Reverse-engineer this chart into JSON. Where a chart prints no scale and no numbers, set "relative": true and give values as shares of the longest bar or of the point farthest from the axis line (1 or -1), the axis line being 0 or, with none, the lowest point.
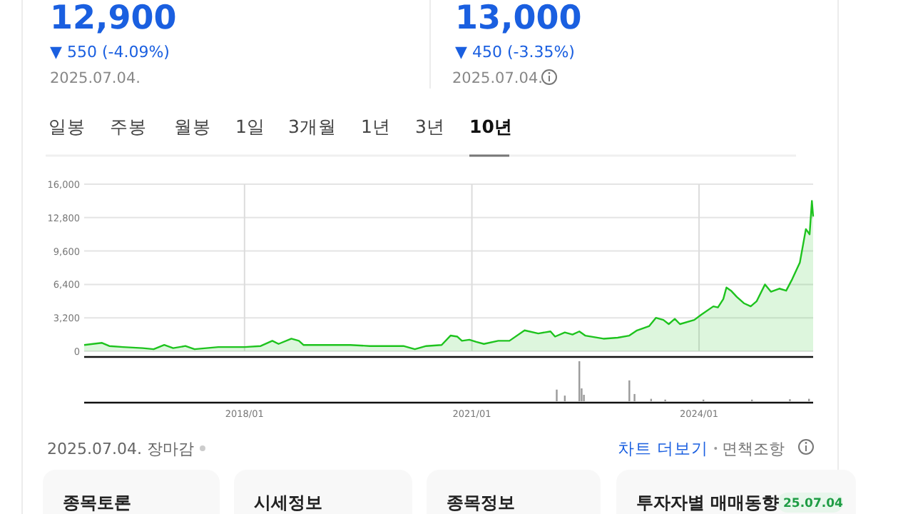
{
  "chart_data": [
    {
      "type": "area",
      "xlim": [
        "2015-11-20",
        "2025-07-04"
      ],
      "ylim": [
        0,
        16000
      ],
      "yticks": [
        {
          "value": 0,
          "label": "0"
        },
        {
          "value": 3200,
          "label": "3,200"
        },
        {
          "value": 6400,
          "label": "6,400"
        },
        {
          "value": 9600,
          "label": "9,600"
        },
        {
          "value": 12800,
          "label": "12,800"
        },
        {
          "value": 16000,
          "label": "16,000"
        }
      ],
      "xticks": [
        {
          "value": "2018-01",
          "label": null
        },
        {
          "value": "2021-01",
          "label": null
        },
        {
          "value": "2024-01",
          "label": null
        }
      ],
      "tick_labels": "y",
      "grid": true,
      "x": [
        "2015-11-20",
        "2016-01-01",
        "2016-02-14",
        "2016-03-20",
        "2016-05-26",
        "2016-08-28",
        "2016-10-20",
        "2016-12-10",
        "2017-01-22",
        "2017-03-22",
        "2017-05-05",
        "2017-08-28",
        "2018-01-01",
        "2018-03-20",
        "2018-05-15",
        "2018-06-14",
        "2018-08-15",
        "2018-09-20",
        "2018-10-12",
        "2019-01-12",
        "2019-05-26",
        "2019-08-28",
        "2020-02-06",
        "2020-04-01",
        "2020-05-26",
        "2020-08-08",
        "2020-09-20",
        "2020-10-23",
        "2020-11-14",
        "2020-12-20",
        "2021-01-22",
        "2021-02-28",
        "2021-05-08",
        "2021-07-01",
        "2021-09-12",
        "2021-11-17",
        "2022-01-15",
        "2022-02-06",
        "2022-03-25",
        "2022-05-01",
        "2022-06-03",
        "2022-07-01",
        "2022-09-27",
        "2022-12-05",
        "2023-01-30",
        "2023-03-08",
        "2023-05-05",
        "2023-06-07",
        "2023-07-13",
        "2023-08-08",
        "2023-09-06",
        "2023-10-01",
        "2023-12-09",
        "2024-01-12",
        "2024-03-10",
        "2024-04-01",
        "2024-04-27",
        "2024-05-12",
        "2024-06-03",
        "2024-07-01",
        "2024-08-04",
        "2024-09-06",
        "2024-10-05",
        "2024-11-14",
        "2024-12-13",
        "2025-01-22",
        "2025-02-24",
        "2025-03-25",
        "2025-05-01",
        "2025-05-30",
        "2025-06-17",
        "2025-06-28",
        "2025-07-04"
      ],
      "series": [
        {
          "color": "#1ec31e",
          "values": [
            600,
            700,
            800,
            500,
            400,
            300,
            200,
            600,
            300,
            500,
            200,
            400,
            400,
            500,
            1000,
            700,
            1200,
            1000,
            600,
            600,
            600,
            500,
            500,
            200,
            500,
            600,
            1500,
            1400,
            1000,
            1100,
            900,
            700,
            1000,
            1000,
            2000,
            1700,
            1900,
            1400,
            1800,
            1600,
            1900,
            1500,
            1200,
            1300,
            1500,
            2000,
            2400,
            3200,
            3000,
            2600,
            3100,
            2600,
            3000,
            3500,
            4300,
            4200,
            5000,
            6100,
            5800,
            5200,
            4600,
            4300,
            4800,
            6400,
            5700,
            6000,
            5800,
            6900,
            8500,
            11700,
            11200,
            14400,
            12900
          ]
        }
      ]
    },
    {
      "type": "bar",
      "relative": true,
      "xlim": [
        "2015-11-20",
        "2025-07-04"
      ],
      "xticks": [
        {
          "value": "2018-01",
          "label": "2018/01"
        },
        {
          "value": "2021-01",
          "label": "2021/01"
        },
        {
          "value": "2024-01",
          "label": "2024/01"
        }
      ],
      "tick_labels": "x",
      "x": [
        "2022-02-14",
        "2022-03-25",
        "2022-06-03",
        "2022-06-14",
        "2022-06-25",
        "2023-01-30",
        "2023-02-24",
        "2023-05-15",
        "2023-07-22",
        "2024-01-22",
        "2024-09-12",
        "2025-03-14",
        "2025-06-14"
      ],
      "series": [
        {
          "color": "#9a9a9a",
          "values": [
            0.29,
            0.14,
            1,
            0.32,
            0.16,
            0.52,
            0.18,
            0.06,
            0.04,
            0.04,
            0.04,
            0.05,
            0.06
          ]
        }
      ]
    },
    {
      "type": "other",
      "annotations": [
        "12,900",
        "▼ 550 (-4.09%)",
        "2025.07.04.",
        "13,000",
        "▼ 450 (-3.35%)",
        "2025.07.04.",
        "일봉",
        "주봉",
        "월봉",
        "1일",
        "3개월",
        "1년",
        "3년",
        "10년",
        "2025.07.04. 장마감",
        "차트 더보기",
        "면책조항",
        "종목토론",
        "시세정보",
        "종목정보",
        "투자자별 매매동향",
        "25.07.04"
      ]
    }
  ]
}
